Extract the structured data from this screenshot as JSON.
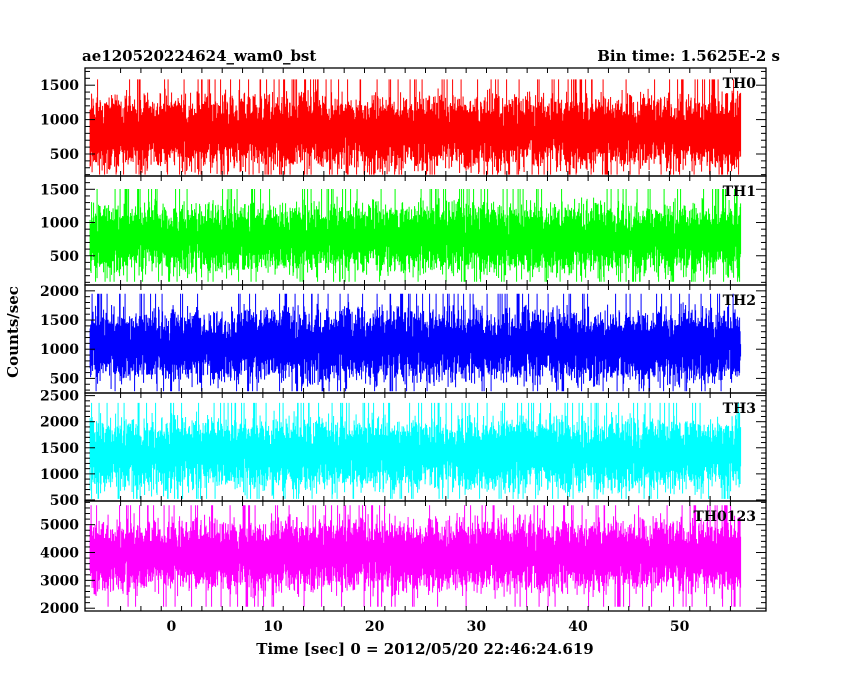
{
  "header": {
    "title": "ae120520224624_wam0_bst",
    "bin_time": "Bin time: 1.5625E-2 s"
  },
  "chart_data": {
    "type": "line",
    "title": "ae120520224624_wam0_bst",
    "xlabel": "Time [sec] 0 = 2012/05/20 22:46:24.619",
    "ylabel": "Counts/sec",
    "xlim": [
      -8.5,
      58.5
    ],
    "x_ticks": [
      0,
      10,
      20,
      30,
      40,
      50
    ],
    "x_tick_labels": [
      "0",
      "10",
      "20",
      "30",
      "40",
      "50"
    ],
    "time_range": [
      -8,
      56
    ],
    "bin_time": 0.015625,
    "panels": [
      {
        "name": "TH0",
        "color": "#ff0000",
        "ylim": [
          180,
          1750
        ],
        "yticks": [
          500,
          1000,
          1500
        ],
        "ytick_labels": [
          "500",
          "1000",
          "1500"
        ],
        "mean": 820,
        "min": 200,
        "max": 1730
      },
      {
        "name": "TH1",
        "color": "#00ff00",
        "ylim": [
          60,
          1700
        ],
        "yticks": [
          500,
          1000,
          1500
        ],
        "ytick_labels": [
          "500",
          "1000",
          "1500"
        ],
        "mean": 760,
        "min": 110,
        "max": 1600
      },
      {
        "name": "TH2",
        "color": "#0000ff",
        "ylim": [
          250,
          2100
        ],
        "yticks": [
          500,
          1000,
          1500,
          2000
        ],
        "ytick_labels": [
          "500",
          "1000",
          "1500",
          "2000"
        ],
        "mean": 1060,
        "min": 280,
        "max": 2060
      },
      {
        "name": "TH3",
        "color": "#00ffff",
        "ylim": [
          480,
          2550
        ],
        "yticks": [
          500,
          1000,
          1500,
          2000,
          2500
        ],
        "ytick_labels": [
          "500",
          "1000",
          "1500",
          "2000",
          "2500"
        ],
        "mean": 1380,
        "min": 520,
        "max": 2480
      },
      {
        "name": "TH0123",
        "color": "#ff00ff",
        "ylim": [
          1900,
          5850
        ],
        "yticks": [
          2000,
          3000,
          4000,
          5000
        ],
        "ytick_labels": [
          "2000",
          "3000",
          "4000",
          "5000"
        ],
        "mean": 3900,
        "min": 2000,
        "max": 5700
      }
    ]
  }
}
